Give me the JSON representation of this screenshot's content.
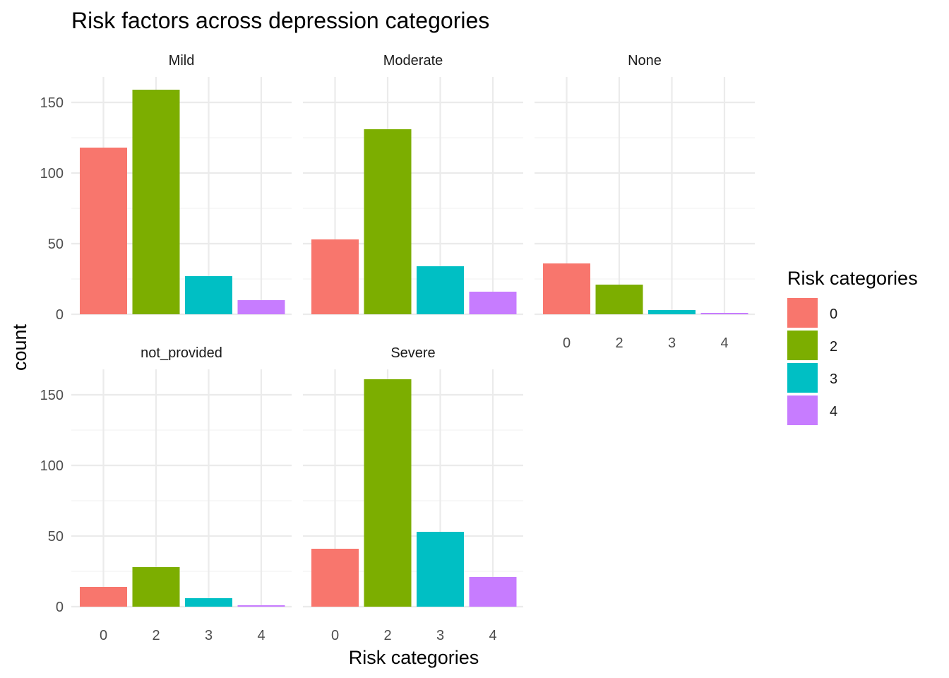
{
  "chart_data": {
    "type": "bar",
    "title": "Risk factors across depression categories",
    "xlabel": "Risk categories",
    "ylabel": "count",
    "categories": [
      "0",
      "2",
      "3",
      "4"
    ],
    "ylim": [
      0,
      168
    ],
    "yticks": [
      0,
      50,
      100,
      150
    ],
    "grid": true,
    "legend": {
      "title": "Risk categories",
      "position": "right",
      "entries": [
        {
          "label": "0",
          "color": "#F8766D"
        },
        {
          "label": "2",
          "color": "#7CAE00"
        },
        {
          "label": "3",
          "color": "#00BFC4"
        },
        {
          "label": "4",
          "color": "#C77CFF"
        }
      ]
    },
    "bar_colors": [
      "#F8766D",
      "#7CAE00",
      "#00BFC4",
      "#C77CFF"
    ],
    "panels": [
      {
        "name": "Mild",
        "values": [
          118,
          159,
          27,
          10
        ]
      },
      {
        "name": "Moderate",
        "values": [
          53,
          131,
          34,
          16
        ]
      },
      {
        "name": "None",
        "values": [
          36,
          21,
          3,
          1
        ]
      },
      {
        "name": "not_provided",
        "values": [
          14,
          28,
          6,
          1
        ]
      },
      {
        "name": "Severe",
        "values": [
          41,
          161,
          53,
          21
        ]
      }
    ]
  }
}
